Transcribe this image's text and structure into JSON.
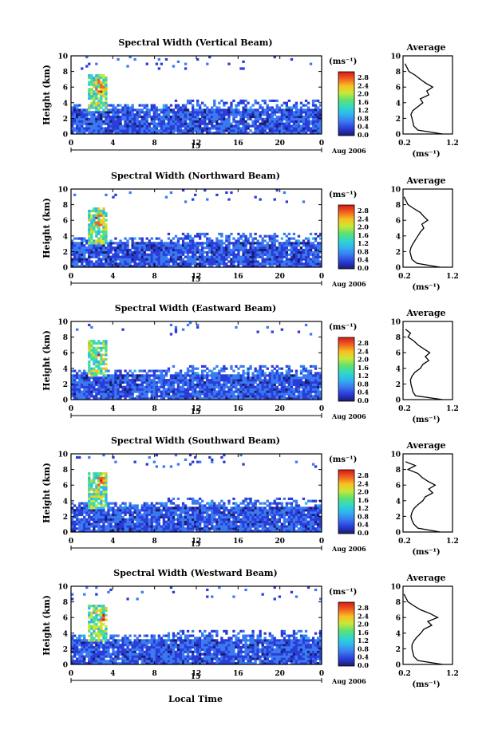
{
  "figure": {
    "xlabel": "Local Time",
    "date_label": "Aug 2006",
    "day_label": "15",
    "colorbar_unit": "(ms⁻¹)",
    "colorbar_ticks": [
      "0.0",
      "0.4",
      "0.8",
      "1.2",
      "1.6",
      "2.0",
      "2.4",
      "2.8"
    ],
    "colorbar_colors": [
      "#1a1a6e",
      "#2a3cd8",
      "#3a7af0",
      "#2fb4f0",
      "#30d8c8",
      "#60e070",
      "#c8e838",
      "#f8c020",
      "#f06020",
      "#d81818"
    ],
    "profile_title": "Average",
    "profile_xlabel": "(ms⁻¹)"
  },
  "chart_data": [
    {
      "type": "heatmap",
      "title": "Spectral Width (Vertical Beam)",
      "ylabel": "Height (km)",
      "xlim": [
        0,
        24
      ],
      "ylim": [
        0,
        10
      ],
      "xticks": [
        "0",
        "4",
        "8",
        "12",
        "16",
        "20",
        "0"
      ],
      "yticks": [
        "0",
        "2",
        "4",
        "6",
        "8",
        "10"
      ],
      "zlim": [
        0.0,
        2.8
      ],
      "profile": {
        "title": "Average",
        "xlabel": "(ms⁻¹)",
        "xlim": [
          0.2,
          1.2
        ],
        "xticks": [
          "0.2",
          "1.2"
        ],
        "ylim": [
          0,
          10
        ],
        "height_km": [
          0,
          0.5,
          1,
          1.5,
          2,
          2.5,
          3,
          3.5,
          4,
          4.5,
          5,
          5.5,
          6,
          6.5,
          7,
          7.5,
          8,
          8.5,
          9
        ],
        "width": [
          1.0,
          0.5,
          0.42,
          0.4,
          0.38,
          0.36,
          0.4,
          0.5,
          0.6,
          0.55,
          0.72,
          0.68,
          0.8,
          0.66,
          0.55,
          0.45,
          0.32,
          0.28,
          0.24
        ]
      }
    },
    {
      "type": "heatmap",
      "title": "Spectral Width (Northward Beam)",
      "ylabel": "Height (km)",
      "xlim": [
        0,
        24
      ],
      "ylim": [
        0,
        10
      ],
      "xticks": [
        "0",
        "4",
        "8",
        "12",
        "16",
        "20",
        "0"
      ],
      "yticks": [
        "0",
        "2",
        "4",
        "6",
        "8",
        "10"
      ],
      "zlim": [
        0.0,
        2.8
      ],
      "profile": {
        "title": "Average",
        "xlabel": "(ms⁻¹)",
        "xlim": [
          0.2,
          1.2
        ],
        "xticks": [
          "0.2",
          "1.2"
        ],
        "ylim": [
          0,
          10
        ],
        "height_km": [
          0,
          0.5,
          1,
          1.5,
          2,
          2.5,
          3,
          3.5,
          4,
          4.5,
          5,
          5.5,
          6,
          6.5,
          7,
          7.5,
          8,
          8.5,
          9
        ],
        "width": [
          0.95,
          0.48,
          0.38,
          0.36,
          0.34,
          0.36,
          0.4,
          0.45,
          0.5,
          0.55,
          0.62,
          0.58,
          0.7,
          0.62,
          0.55,
          0.42,
          0.3,
          0.26,
          0.22
        ]
      }
    },
    {
      "type": "heatmap",
      "title": "Spectral Width (Eastward Beam)",
      "ylabel": "Height (km)",
      "xlim": [
        0,
        24
      ],
      "ylim": [
        0,
        10
      ],
      "xticks": [
        "0",
        "4",
        "8",
        "12",
        "16",
        "20",
        "0"
      ],
      "yticks": [
        "0",
        "2",
        "4",
        "6",
        "8",
        "10"
      ],
      "zlim": [
        0.0,
        2.8
      ],
      "profile": {
        "title": "Average",
        "xlabel": "(ms⁻¹)",
        "xlim": [
          0.2,
          1.2
        ],
        "xticks": [
          "0.2",
          "1.2"
        ],
        "ylim": [
          0,
          10
        ],
        "height_km": [
          0,
          0.5,
          1,
          1.5,
          2,
          2.5,
          3,
          3.5,
          4,
          4.5,
          5,
          5.5,
          6,
          6.5,
          7,
          7.5,
          8,
          8.5,
          9
        ],
        "width": [
          1.0,
          0.45,
          0.4,
          0.38,
          0.36,
          0.35,
          0.38,
          0.44,
          0.55,
          0.6,
          0.72,
          0.65,
          0.74,
          0.62,
          0.5,
          0.42,
          0.3,
          0.35,
          0.25
        ]
      }
    },
    {
      "type": "heatmap",
      "title": "Spectral Width (Southward Beam)",
      "ylabel": "Height (km)",
      "xlim": [
        0,
        24
      ],
      "ylim": [
        0,
        10
      ],
      "xticks": [
        "0",
        "4",
        "8",
        "12",
        "16",
        "20",
        "0"
      ],
      "yticks": [
        "0",
        "2",
        "4",
        "6",
        "8",
        "10"
      ],
      "zlim": [
        0.0,
        2.8
      ],
      "profile": {
        "title": "Average",
        "xlabel": "(ms⁻¹)",
        "xlim": [
          0.2,
          1.2
        ],
        "xticks": [
          "0.2",
          "1.2"
        ],
        "ylim": [
          0,
          10
        ],
        "height_km": [
          0,
          0.5,
          1,
          1.5,
          2,
          2.5,
          3,
          3.5,
          4,
          4.5,
          5,
          5.5,
          6,
          6.5,
          7,
          7.5,
          8,
          8.5,
          9
        ],
        "width": [
          0.95,
          0.5,
          0.42,
          0.38,
          0.36,
          0.38,
          0.42,
          0.5,
          0.6,
          0.65,
          0.8,
          0.72,
          0.85,
          0.7,
          0.58,
          0.5,
          0.3,
          0.45,
          0.25
        ]
      }
    },
    {
      "type": "heatmap",
      "title": "Spectral Width (Westward Beam)",
      "ylabel": "Height (km)",
      "xlim": [
        0,
        24
      ],
      "ylim": [
        0,
        10
      ],
      "xticks": [
        "0",
        "4",
        "8",
        "12",
        "16",
        "20",
        "0"
      ],
      "yticks": [
        "0",
        "2",
        "4",
        "6",
        "8",
        "10"
      ],
      "zlim": [
        0.0,
        2.8
      ],
      "profile": {
        "title": "Average",
        "xlabel": "(ms⁻¹)",
        "xlim": [
          0.2,
          1.2
        ],
        "xticks": [
          "0.2",
          "1.2"
        ],
        "ylim": [
          0,
          10
        ],
        "height_km": [
          0,
          0.5,
          1,
          1.5,
          2,
          2.5,
          3,
          3.5,
          4,
          4.5,
          5,
          5.5,
          6,
          6.5,
          7,
          7.5,
          8,
          8.5,
          9
        ],
        "width": [
          1.0,
          0.5,
          0.42,
          0.4,
          0.38,
          0.38,
          0.42,
          0.48,
          0.56,
          0.62,
          0.78,
          0.7,
          0.9,
          0.75,
          0.55,
          0.42,
          0.3,
          0.26,
          0.22
        ]
      }
    }
  ]
}
